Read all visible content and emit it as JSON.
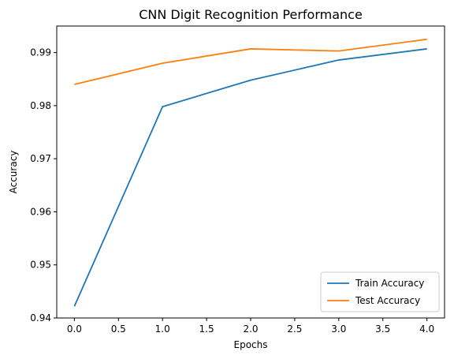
{
  "chart_data": {
    "type": "line",
    "title": "CNN Digit Recognition Performance",
    "xlabel": "Epochs",
    "ylabel": "Accuracy",
    "x": [
      0,
      1,
      2,
      3,
      4
    ],
    "xlim": [
      -0.2,
      4.2
    ],
    "ylim": [
      0.94,
      0.995
    ],
    "xticks": [
      "0.0",
      "0.5",
      "1.0",
      "1.5",
      "2.0",
      "2.5",
      "3.0",
      "3.5",
      "4.0"
    ],
    "yticks": [
      "0.94",
      "0.95",
      "0.96",
      "0.97",
      "0.98",
      "0.99"
    ],
    "grid": false,
    "legend_position": "lower-right",
    "series": [
      {
        "name": "Train Accuracy",
        "color": "#1f77b4",
        "values": [
          0.9422,
          0.9798,
          0.9848,
          0.9886,
          0.9907
        ]
      },
      {
        "name": "Test Accuracy",
        "color": "#ff7f0e",
        "values": [
          0.984,
          0.988,
          0.9907,
          0.9903,
          0.9925
        ]
      }
    ]
  }
}
